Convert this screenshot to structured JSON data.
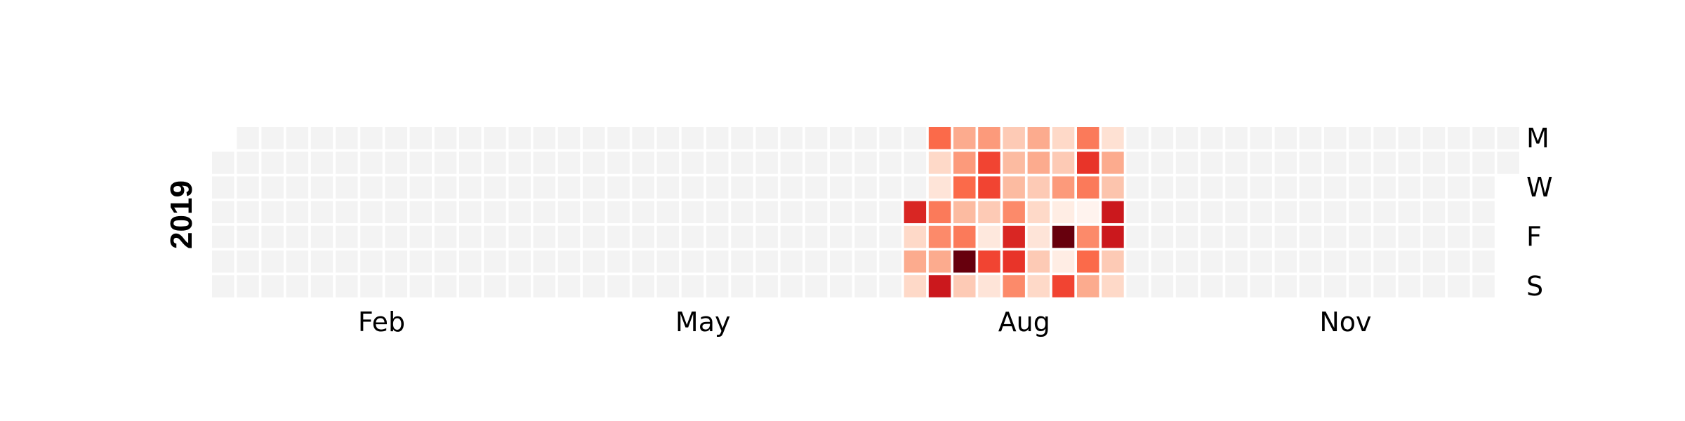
{
  "chart_data": {
    "type": "heatmap",
    "year": "2019",
    "month_ticks": [
      {
        "label": "Feb",
        "week": 6.5
      },
      {
        "label": "May",
        "week": 19.5
      },
      {
        "label": "Aug",
        "week": 32.5
      },
      {
        "label": "Nov",
        "week": 45.5
      }
    ],
    "day_ticks": [
      {
        "label": "M",
        "day": 0
      },
      {
        "label": "W",
        "day": 2
      },
      {
        "label": "F",
        "day": 4
      },
      {
        "label": "S",
        "day": 6
      }
    ],
    "colormap": "Reds",
    "empty_color": "#f3f3f3",
    "value_range": [
      0,
      10
    ],
    "grid": {
      "weeks": 53,
      "first_weekday": 1,
      "days": 365
    },
    "active_weeks": [
      {
        "week": 28,
        "values": [
          null,
          null,
          null,
          7,
          1.5,
          3,
          1.5
        ]
      },
      {
        "week": 29,
        "values": [
          5,
          1.5,
          1,
          4.5,
          4,
          3,
          7.5
        ]
      },
      {
        "week": 30,
        "values": [
          3,
          3.5,
          5,
          2.5,
          4.5,
          10,
          2
        ]
      },
      {
        "week": 31,
        "values": [
          3.5,
          6,
          6,
          2,
          0.8,
          6,
          1
        ]
      },
      {
        "week": 32,
        "values": [
          2,
          2.5,
          2.5,
          4,
          7,
          6.5,
          4
        ]
      },
      {
        "week": 33,
        "values": [
          3,
          3,
          2,
          1.5,
          1,
          2,
          1.5
        ]
      },
      {
        "week": 34,
        "values": [
          1.5,
          2,
          3.5,
          0.5,
          10,
          0.5,
          6
        ]
      },
      {
        "week": 35,
        "values": [
          4.5,
          6.5,
          4.5,
          0.1,
          4,
          5,
          3
        ]
      },
      {
        "week": 36,
        "values": [
          1.2,
          3,
          2.2,
          7.5,
          7.5,
          2,
          1.5
        ]
      }
    ]
  }
}
